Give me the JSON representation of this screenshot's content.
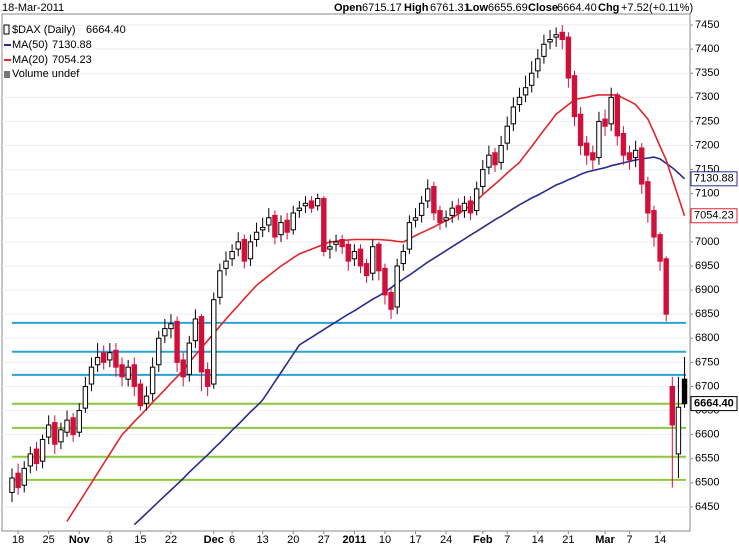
{
  "chart_data": {
    "type": "candlestick",
    "date": "18-Mar-2011",
    "header": {
      "open_label": "Open",
      "high_label": "High",
      "low_label": "Low",
      "close_label": "Close",
      "change_label": "Chg",
      "change": {
        "value": 7.52,
        "label": "+7.52"
      },
      "change_pct": {
        "value": 0.11,
        "label": "(+0.11%)"
      }
    },
    "symbol": "$DAX (Daily)",
    "close_label": "6664.40",
    "volume_label": "Volume undef",
    "up_color": "#000000",
    "down_color": "#d0103a",
    "categories": [
      null,
      "18",
      null,
      null,
      null,
      null,
      "25",
      null,
      null,
      null,
      null,
      "Nov",
      null,
      null,
      null,
      null,
      "8",
      null,
      null,
      null,
      null,
      "15",
      null,
      null,
      null,
      null,
      "22",
      null,
      null,
      null,
      null,
      null,
      null,
      "Dec",
      null,
      null,
      "6",
      null,
      null,
      null,
      null,
      "13",
      null,
      null,
      null,
      null,
      "20",
      null,
      null,
      null,
      null,
      "27",
      null,
      null,
      null,
      null,
      "2011",
      null,
      null,
      null,
      null,
      "10",
      null,
      null,
      null,
      null,
      "17",
      null,
      null,
      null,
      null,
      "24",
      null,
      null,
      null,
      null,
      null,
      "Feb",
      null,
      null,
      null,
      "7",
      null,
      null,
      null,
      null,
      "14",
      null,
      null,
      null,
      null,
      "21",
      null,
      null,
      null,
      null,
      null,
      "Mar",
      null,
      null,
      null,
      "7",
      null,
      null,
      null,
      null,
      "14",
      null,
      null,
      null,
      null
    ],
    "open": [
      6480,
      6520,
      6495,
      6535,
      6570,
      6545,
      6595,
      6625,
      6585,
      6605,
      6635,
      6605,
      6655,
      6705,
      6745,
      6770,
      6755,
      6775,
      6745,
      6715,
      6745,
      6705,
      6665,
      6685,
      6745,
      6805,
      6820,
      6835,
      6755,
      6725,
      6795,
      6845,
      6735,
      6705,
      6885,
      6945,
      6965,
      6985,
      7005,
      6965,
      7005,
      7025,
      7035,
      7055,
      7015,
      7045,
      7025,
      7065,
      7075,
      7085,
      7075,
      7090,
      6985,
      6995,
      7005,
      6995,
      6965,
      6985,
      6955,
      6935,
      6995,
      6945,
      6895,
      6865,
      6955,
      6985,
      7045,
      7055,
      7085,
      7115,
      7065,
      7045,
      7055,
      7075,
      7065,
      7085,
      7065,
      7115,
      7155,
      7185,
      7165,
      7205,
      7245,
      7285,
      7305,
      7325,
      7355,
      7385,
      7415,
      7425,
      7435,
      7425,
      7345,
      7265,
      7205,
      7185,
      7175,
      7255,
      7245,
      7305,
      7225,
      7185,
      7175,
      7195,
      7125,
      7065,
      7015,
      6965,
      6700,
      6560,
      6715.17
    ],
    "high": [
      6530,
      6540,
      6545,
      6575,
      6585,
      6600,
      6640,
      6640,
      6625,
      6650,
      6645,
      6665,
      6720,
      6760,
      6790,
      6785,
      6790,
      6790,
      6760,
      6755,
      6760,
      6715,
      6700,
      6760,
      6815,
      6840,
      6850,
      6845,
      6770,
      6805,
      6860,
      6850,
      6750,
      6895,
      6955,
      6980,
      6995,
      7020,
      7015,
      7015,
      7040,
      7050,
      7070,
      7065,
      7055,
      7060,
      7075,
      7085,
      7095,
      7095,
      7100,
      7095,
      7005,
      7015,
      7015,
      7005,
      6995,
      6995,
      6965,
      7005,
      7000,
      6955,
      6905,
      6965,
      6995,
      7055,
      7070,
      7095,
      7130,
      7125,
      7075,
      7065,
      7085,
      7090,
      7095,
      7095,
      7125,
      7170,
      7200,
      7195,
      7220,
      7260,
      7300,
      7320,
      7345,
      7375,
      7400,
      7430,
      7440,
      7445,
      7450,
      7435,
      7355,
      7280,
      7220,
      7200,
      7270,
      7275,
      7320,
      7310,
      7240,
      7200,
      7210,
      7205,
      7135,
      7075,
      7020,
      6970,
      6720,
      6720,
      6761.31
    ],
    "low": [
      6460,
      6475,
      6480,
      6520,
      6525,
      6530,
      6580,
      6560,
      6570,
      6595,
      6585,
      6595,
      6645,
      6690,
      6730,
      6735,
      6740,
      6720,
      6700,
      6700,
      6680,
      6650,
      6650,
      6670,
      6730,
      6790,
      6800,
      6730,
      6700,
      6710,
      6780,
      6690,
      6680,
      6695,
      6870,
      6930,
      6950,
      6970,
      6945,
      6950,
      6990,
      7010,
      7020,
      6995,
      7000,
      7005,
      7015,
      7050,
      7060,
      7060,
      7065,
      6970,
      6965,
      6980,
      6975,
      6940,
      6950,
      6935,
      6915,
      6920,
      6920,
      6870,
      6840,
      6850,
      6940,
      6975,
      7030,
      7040,
      7070,
      7045,
      7025,
      7030,
      7040,
      7045,
      7050,
      7045,
      7055,
      7100,
      7140,
      7145,
      7150,
      7190,
      7230,
      7270,
      7290,
      7310,
      7340,
      7370,
      7400,
      7405,
      7400,
      7320,
      7240,
      7180,
      7160,
      7150,
      7160,
      7220,
      7230,
      7200,
      7160,
      7150,
      7155,
      7100,
      7040,
      6990,
      6940,
      6835,
      6490,
      6510,
      6655.69
    ],
    "close": [
      6510,
      6490,
      6530,
      6560,
      6540,
      6590,
      6620,
      6580,
      6610,
      6630,
      6600,
      6650,
      6700,
      6740,
      6760,
      6750,
      6770,
      6740,
      6720,
      6740,
      6700,
      6660,
      6680,
      6740,
      6800,
      6820,
      6830,
      6750,
      6720,
      6790,
      6840,
      6730,
      6700,
      6880,
      6940,
      6960,
      6980,
      7000,
      6960,
      7000,
      7020,
      7030,
      7050,
      7010,
      7040,
      7020,
      7060,
      7070,
      7080,
      7070,
      7090,
      6980,
      6990,
      7000,
      6990,
      6960,
      6980,
      6950,
      6930,
      6990,
      6940,
      6890,
      6860,
      6950,
      6980,
      7040,
      7050,
      7080,
      7110,
      7060,
      7040,
      7050,
      7070,
      7060,
      7080,
      7060,
      7110,
      7150,
      7180,
      7160,
      7200,
      7240,
      7280,
      7300,
      7320,
      7350,
      7380,
      7410,
      7420,
      7430,
      7420,
      7340,
      7260,
      7200,
      7180,
      7170,
      7250,
      7240,
      7300,
      7220,
      7180,
      7170,
      7190,
      7120,
      7060,
      7010,
      6960,
      6850,
      6620,
      6656.88,
      6664.4
    ],
    "series": [
      {
        "name": "MA(50)",
        "color": "#2b2b8c",
        "values": [
          null,
          null,
          null,
          null,
          null,
          null,
          null,
          null,
          null,
          null,
          null,
          null,
          null,
          null,
          null,
          null,
          null,
          null,
          null,
          null,
          6413,
          6425,
          6437,
          6449,
          6461,
          6473,
          6485,
          6497,
          6509,
          6522,
          6534,
          6546,
          6558,
          6571,
          6583,
          6596,
          6609,
          6621,
          6634,
          6647,
          6659,
          6672,
          6691,
          6710,
          6729,
          6748,
          6767,
          6786,
          6794,
          6802,
          6810,
          6818,
          6826,
          6834,
          6842,
          6850,
          6857,
          6865,
          6873,
          6881,
          6888,
          6896,
          6905,
          6914,
          6923,
          6931,
          6940,
          6949,
          6958,
          6966,
          6974,
          6982,
          6990,
          6998,
          7006,
          7014,
          7022,
          7030,
          7038,
          7046,
          7053,
          7061,
          7069,
          7077,
          7084,
          7091,
          7097,
          7104,
          7111,
          7118,
          7123,
          7129,
          7134,
          7140,
          7145,
          7148,
          7151,
          7154,
          7158,
          7161,
          7164,
          7167,
          7170,
          7172,
          7174,
          7176,
          7172,
          7163,
          7154,
          7143,
          7130.88
        ]
      },
      {
        "name": "MA(20)",
        "color": "#e0262b",
        "values": [
          null,
          null,
          null,
          null,
          null,
          null,
          null,
          null,
          null,
          6420,
          6440,
          6460,
          6480,
          6500,
          6520,
          6540,
          6560,
          6580,
          6600,
          6613,
          6627,
          6640,
          6653,
          6667,
          6680,
          6693,
          6707,
          6720,
          6735,
          6750,
          6765,
          6780,
          6795,
          6810,
          6825,
          6840,
          6854,
          6868,
          6882,
          6896,
          6910,
          6920,
          6930,
          6940,
          6950,
          6958,
          6967,
          6975,
          6980,
          6985,
          6990,
          6995,
          7000,
          7001,
          7003,
          7004,
          7005,
          7005,
          7005,
          7005,
          7005,
          7004,
          7003,
          7001,
          7000,
          7006,
          7013,
          7019,
          7025,
          7031,
          7038,
          7044,
          7050,
          7058,
          7067,
          7075,
          7086,
          7098,
          7109,
          7120,
          7131,
          7143,
          7154,
          7165,
          7182,
          7198,
          7215,
          7232,
          7248,
          7265,
          7275,
          7285,
          7295,
          7298,
          7300,
          7303,
          7305,
          7305,
          7305,
          7305,
          7298,
          7292,
          7285,
          7270,
          7255,
          7227,
          7198,
          7170,
          7131,
          7093,
          7054.23
        ]
      }
    ],
    "hlines": [
      {
        "value": 6832,
        "color": "#29a3d6"
      },
      {
        "value": 6772,
        "color": "#29a3d6"
      },
      {
        "value": 6724,
        "color": "#29a3d6"
      },
      {
        "value": 6664,
        "color": "#8cc63e"
      },
      {
        "value": 6614,
        "color": "#8cc63e"
      },
      {
        "value": 6554,
        "color": "#8cc63e"
      },
      {
        "value": 6506,
        "color": "#8cc63e"
      }
    ],
    "ylim": [
      6400,
      7475
    ],
    "yticks": [
      6450,
      6500,
      6550,
      6600,
      6650,
      6700,
      6750,
      6800,
      6850,
      6900,
      6950,
      7000,
      7050,
      7100,
      7150,
      7200,
      7250,
      7300,
      7350,
      7400,
      7450
    ],
    "grid": true
  }
}
